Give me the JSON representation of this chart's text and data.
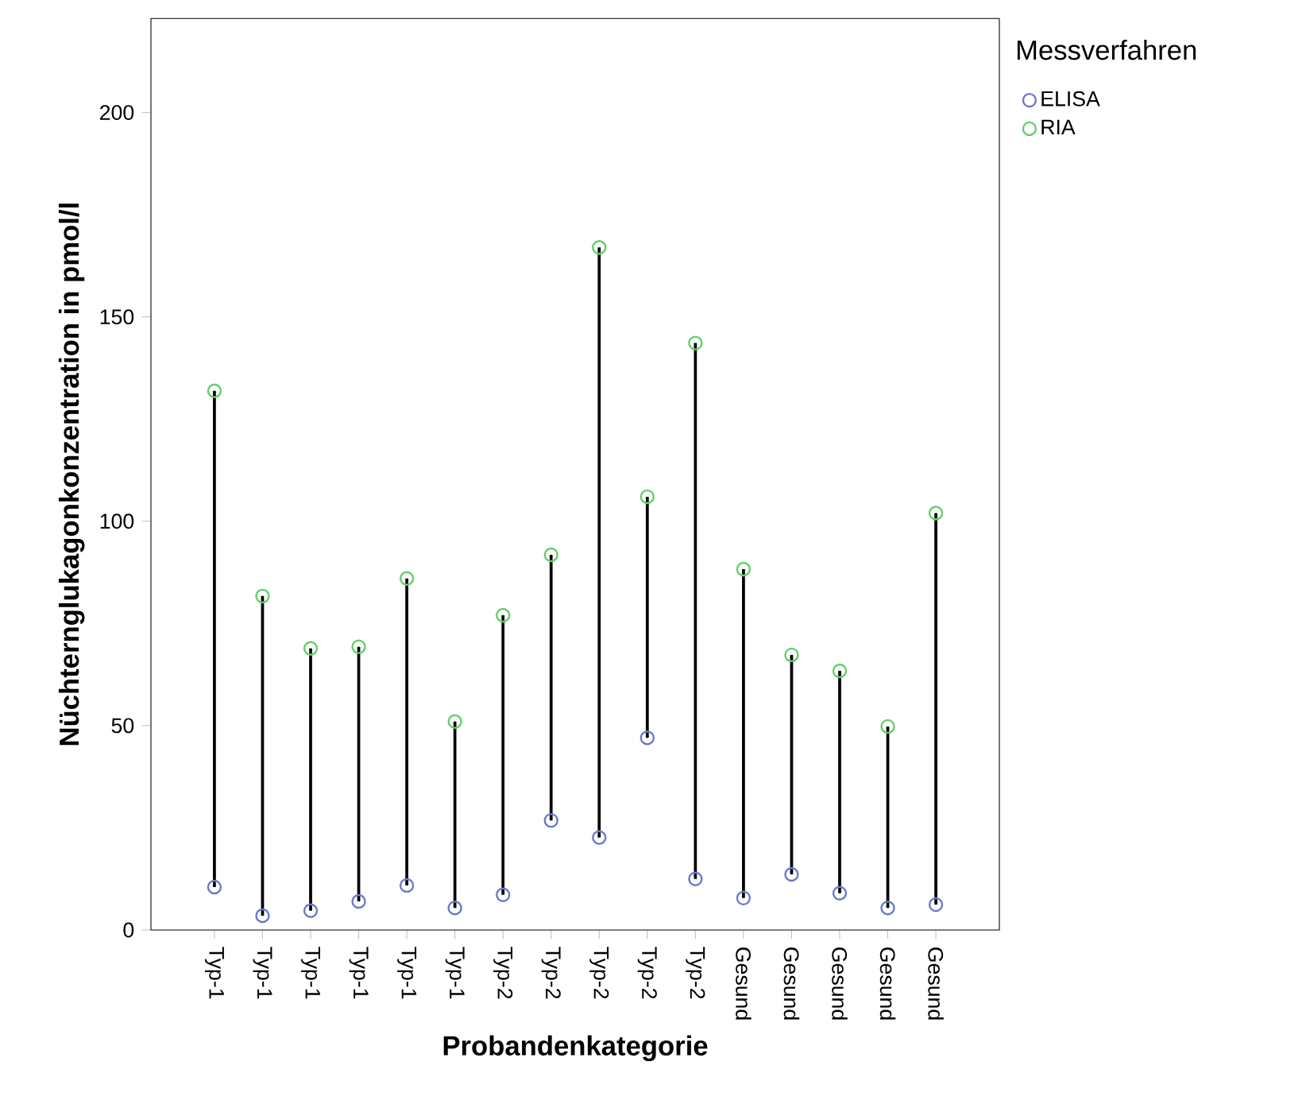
{
  "chart_data": {
    "type": "scatter",
    "xlabel": "Probandenkategorie",
    "ylabel": "Nüchternglukagonkonzentration in pmol/l",
    "legend_title": "Messverfahren",
    "legend": "top right",
    "marker": "circle",
    "categories": [
      "Typ-1",
      "Typ-1",
      "Typ-1",
      "Typ-1",
      "Typ-1",
      "Typ-1",
      "Typ-2",
      "Typ-2",
      "Typ-2",
      "Typ-2",
      "Typ-2",
      "Gesund",
      "Gesund",
      "Gesund",
      "Gesund",
      "Gesund"
    ],
    "ylim": [
      0,
      223
    ],
    "yticks": [
      0,
      50,
      100,
      150,
      200
    ],
    "series": [
      {
        "name": "ELISA",
        "color": "#6a7bc8",
        "values": [
          10.5,
          3.5,
          4.7,
          7,
          10.9,
          5.4,
          8.6,
          26.8,
          22.6,
          47,
          12.5,
          7.8,
          13.6,
          9,
          5.4,
          6.2
        ]
      },
      {
        "name": "RIA",
        "color": "#63cf6a",
        "values": [
          131.9,
          81.7,
          68.9,
          69.3,
          86,
          51,
          77,
          91.8,
          167,
          106,
          143.6,
          88.3,
          67.3,
          63.4,
          49.8,
          102
        ]
      }
    ]
  }
}
